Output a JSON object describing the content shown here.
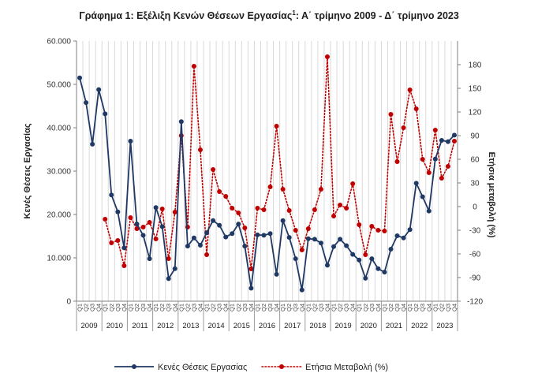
{
  "chart_data": {
    "type": "line",
    "title": "Γράφημα 1: Εξέλιξη Κενών Θέσεων Εργασίας",
    "title_superscript": "1",
    "title_suffix": ": Α΄ τρίμηνο 2009 - Δ΄ τρίμηνο 2023",
    "ylabel_left": "Κενές Θέσεις Εργασίας",
    "ylabel_right": "Ετήσια μεταβολή (%)",
    "ylim_left": [
      0,
      60000
    ],
    "ylim_right": [
      -120,
      210
    ],
    "left_ticks": [
      0,
      10000,
      20000,
      30000,
      40000,
      50000,
      60000
    ],
    "left_tick_labels": [
      "0",
      "10.000",
      "20.000",
      "30.000",
      "40.000",
      "50.000",
      "60.000"
    ],
    "right_ticks": [
      -120,
      -90,
      -60,
      -30,
      0,
      30,
      60,
      90,
      120,
      150,
      180
    ],
    "right_tick_labels": [
      "-120",
      "-90",
      "-60",
      "-30",
      "0",
      "30",
      "60",
      "90",
      "120",
      "150",
      "180"
    ],
    "quarter_labels": [
      "Q1",
      "Q2",
      "Q3",
      "Q4"
    ],
    "years": [
      "2009",
      "2010",
      "2011",
      "2012",
      "2013",
      "2014",
      "2015",
      "2016",
      "2017",
      "2018",
      "2019",
      "2020",
      "2021",
      "2022",
      "2023"
    ],
    "legend_position": "bottom",
    "colors": {
      "vacancies": "#1f3864",
      "change": "#c00000",
      "grid": "#d9d9d9"
    },
    "series": [
      {
        "name": "Κενές Θέσεις Εργασίας",
        "axis": "left",
        "style": "solid",
        "values": [
          51500,
          45800,
          36200,
          48800,
          43200,
          24500,
          20600,
          12300,
          36900,
          17800,
          15200,
          9800,
          21600,
          17200,
          5200,
          7500,
          41400,
          12700,
          14600,
          12900,
          15800,
          18600,
          17500,
          14800,
          15600,
          17800,
          12700,
          3000,
          15300,
          15200,
          15600,
          6200,
          18600,
          14700,
          9800,
          2600,
          14400,
          14300,
          13400,
          8300,
          12600,
          14300,
          12800,
          10800,
          9500,
          5300,
          9800,
          7500,
          6700,
          12000,
          15100,
          14600,
          16500,
          27200,
          24100,
          20800,
          32800,
          37100,
          36800,
          38300
        ]
      },
      {
        "name": "Ετήσια Μεταβολή (%)",
        "axis": "right",
        "style": "dotted",
        "values": [
          null,
          null,
          null,
          null,
          -16,
          -46,
          -43,
          -75,
          -14,
          -28,
          -26,
          -20,
          -41,
          -3,
          -66,
          -7,
          90,
          -26,
          178,
          72,
          -61,
          47,
          19,
          13,
          -2,
          -8,
          -27,
          -79,
          -2,
          -4,
          25,
          102,
          22,
          -5,
          -30,
          -55,
          -28,
          -4,
          22,
          190,
          -12,
          2,
          -2,
          29,
          -23,
          -61,
          -25,
          -30,
          -31,
          117,
          57,
          100,
          148,
          124,
          60,
          43,
          97,
          36,
          51,
          83
        ]
      }
    ]
  },
  "legend": {
    "vacancies_label": "Κενές Θέσεις Εργασίας",
    "change_label": "Ετήσια Μεταβολή (%)"
  }
}
